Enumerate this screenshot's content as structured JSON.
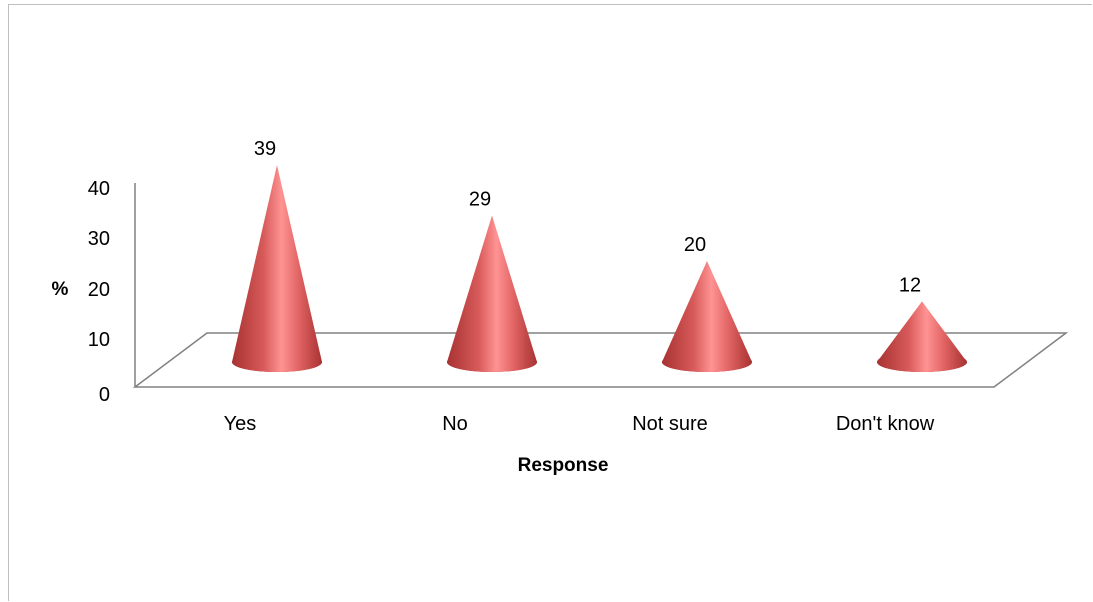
{
  "chart_data": {
    "type": "bar",
    "bar_shape": "cone-3d",
    "categories": [
      "Yes",
      "No",
      "Not sure",
      "Don't know"
    ],
    "values": [
      39,
      29,
      20,
      12
    ],
    "data_labels": [
      "39",
      "29",
      "20",
      "12"
    ],
    "title": "",
    "xlabel": "Response",
    "ylabel": "%",
    "ylim": [
      0,
      40
    ],
    "yticks": [
      "0",
      "10",
      "20",
      "30",
      "40"
    ],
    "grid": false,
    "legend": "none",
    "colors": {
      "cone_dark": "#b03a3a",
      "cone_mid": "#e36b6b",
      "cone_light": "#ff9a9a",
      "axis": "#808080"
    }
  }
}
